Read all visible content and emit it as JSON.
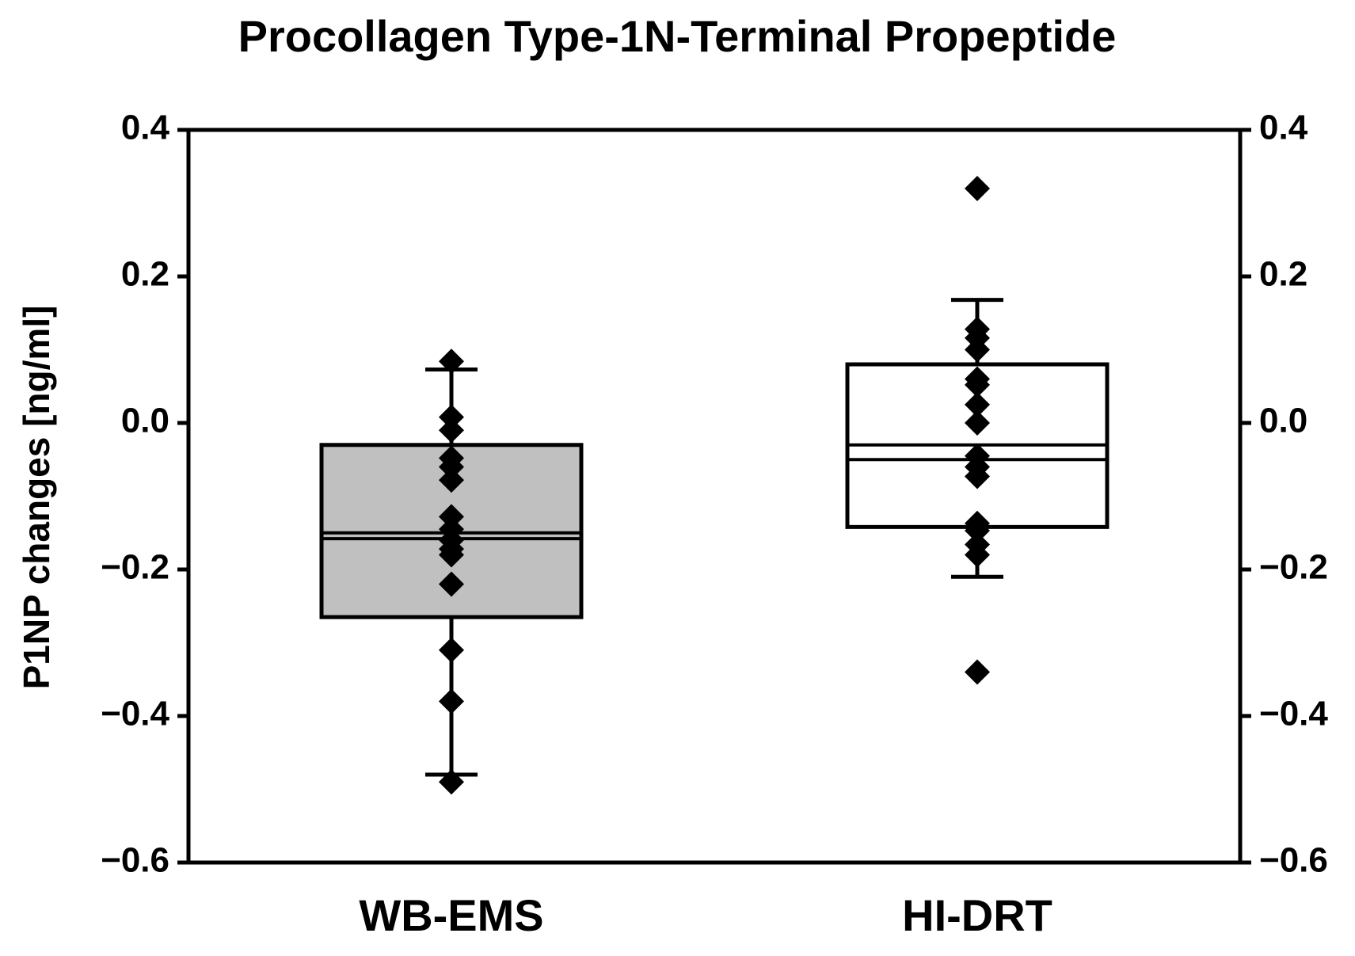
{
  "chart_data": {
    "type": "box",
    "title": "Procollagen Type-1N-Terminal Propeptide",
    "ylabel": "P1NP changes [ng/ml]",
    "categories": [
      "WB-EMS",
      "HI-DRT"
    ],
    "ylim": [
      -0.6,
      0.4
    ],
    "yticks": [
      {
        "value": -0.6,
        "label": "−0.6"
      },
      {
        "value": -0.4,
        "label": "−0.4"
      },
      {
        "value": -0.2,
        "label": "−0.2"
      },
      {
        "value": 0,
        "label": "0.0"
      },
      0.2,
      0.4
    ],
    "boxes": [
      {
        "color": "#c0c0c0",
        "whisker_low": -0.48,
        "q1": -0.265,
        "median": -0.15,
        "mean": -0.158,
        "q3": -0.03,
        "whisker_high": 0.073,
        "points": [
          0.084,
          0.008,
          -0.01,
          -0.048,
          -0.06,
          -0.078,
          -0.128,
          -0.145,
          -0.16,
          -0.172,
          -0.18,
          -0.22,
          -0.31,
          -0.38,
          -0.49
        ]
      },
      {
        "color": "#ffffff",
        "whisker_low": -0.21,
        "q1": -0.142,
        "median": -0.05,
        "mean": -0.03,
        "q3": 0.08,
        "whisker_high": 0.168,
        "points": [
          0.32,
          0.128,
          0.116,
          0.1,
          0.06,
          0.052,
          0.025,
          0.0,
          -0.045,
          -0.06,
          -0.073,
          -0.137,
          -0.147,
          -0.166,
          -0.18,
          -0.34
        ]
      }
    ]
  }
}
